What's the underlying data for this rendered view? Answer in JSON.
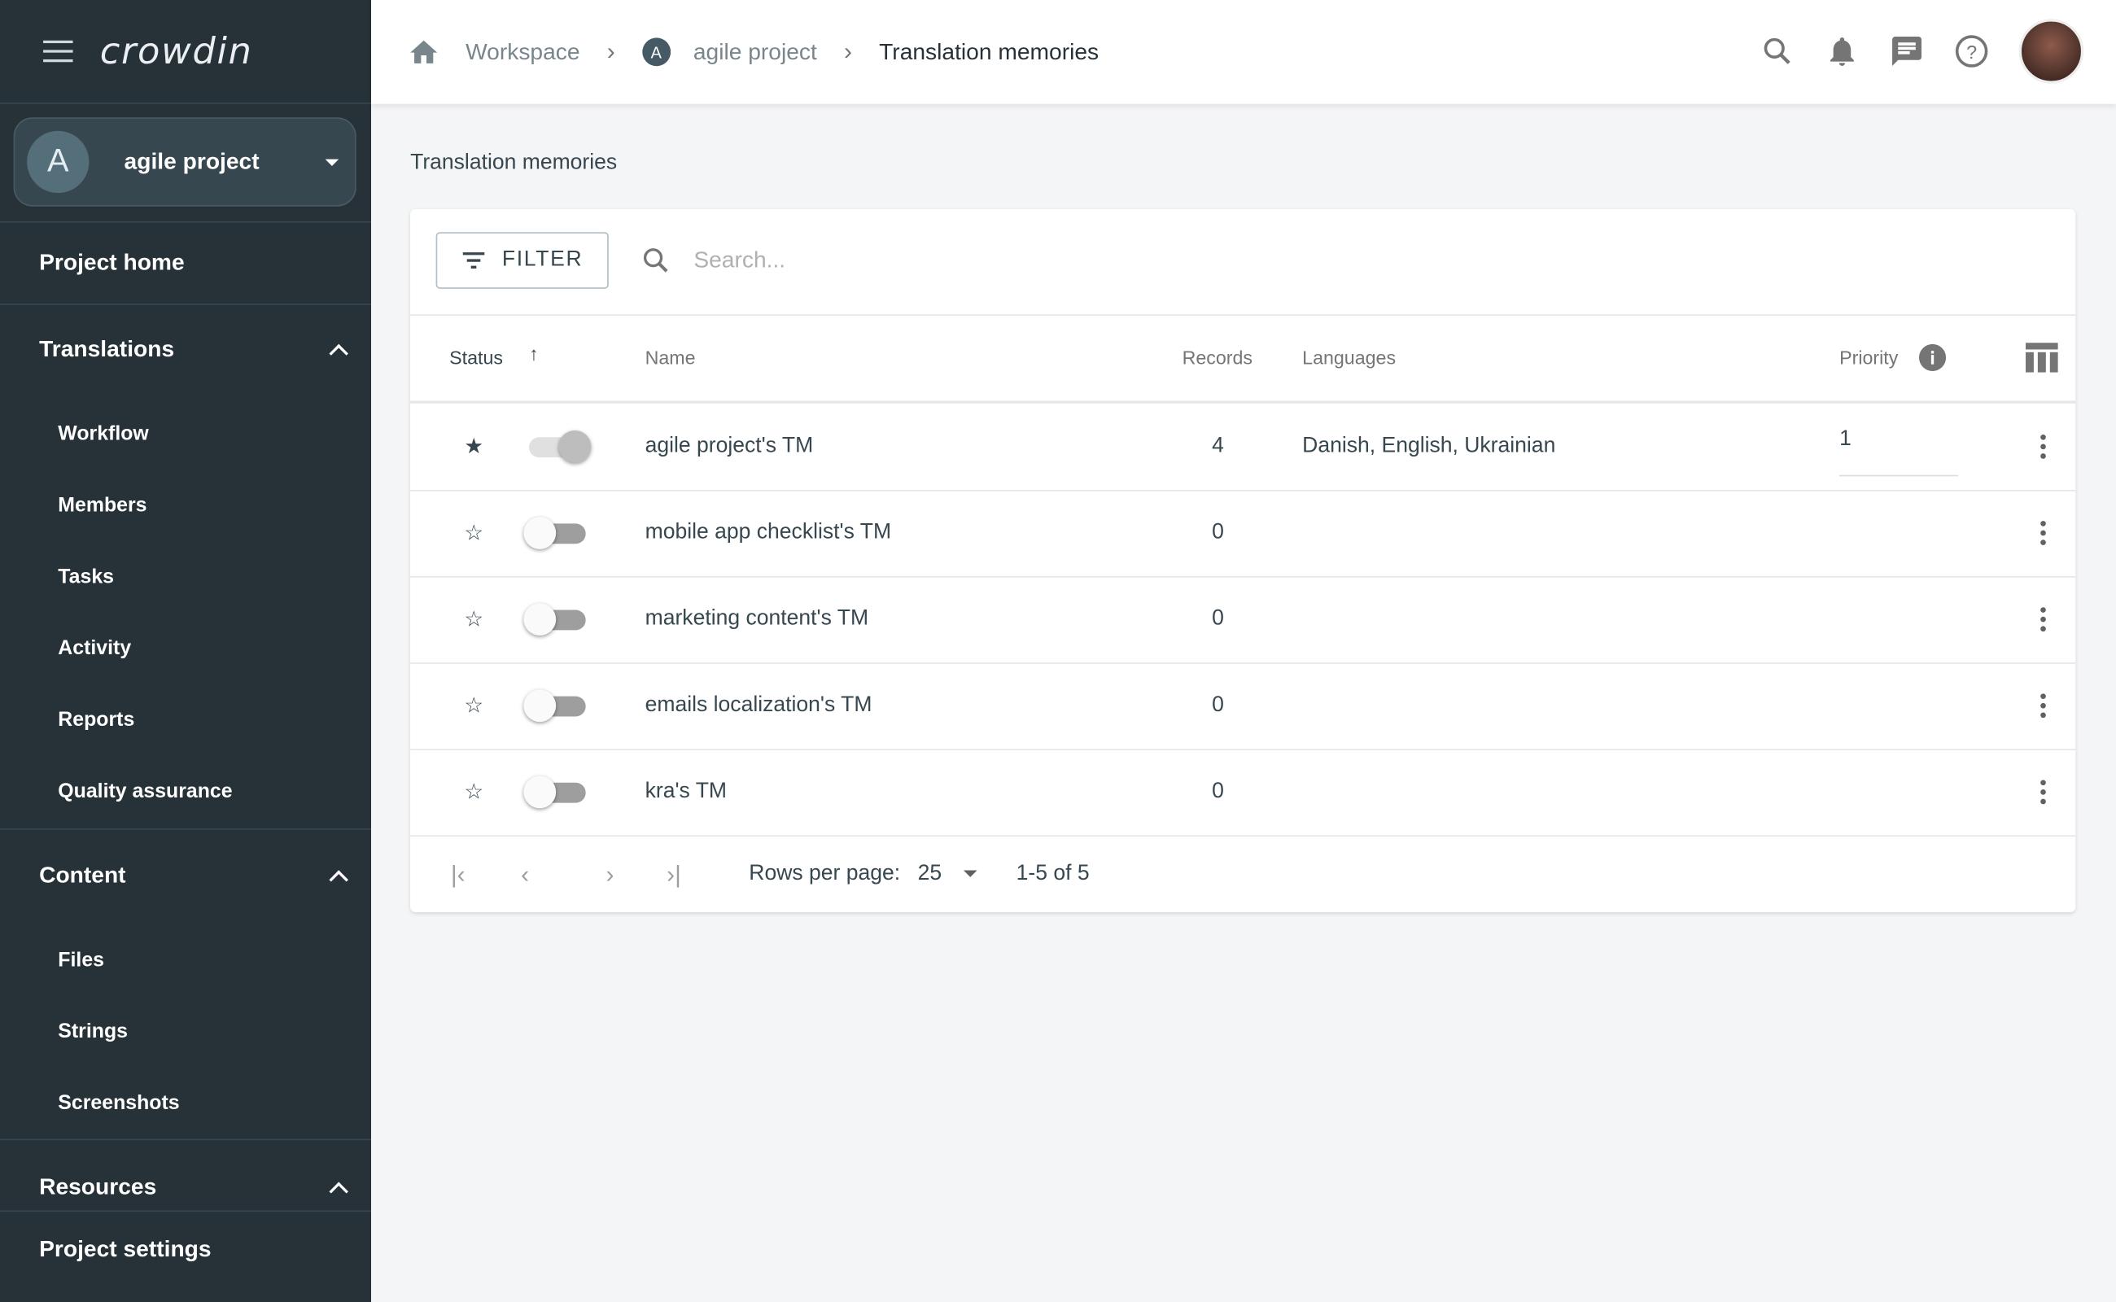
{
  "app": {
    "logo": "crowdin"
  },
  "sidebar": {
    "project": {
      "initial": "A",
      "name": "agile project"
    },
    "project_home": "Project home",
    "translations": {
      "label": "Translations",
      "items": [
        "Workflow",
        "Members",
        "Tasks",
        "Activity",
        "Reports",
        "Quality assurance"
      ]
    },
    "content": {
      "label": "Content",
      "items": [
        "Files",
        "Strings",
        "Screenshots"
      ]
    },
    "resources": "Resources",
    "project_settings": "Project settings"
  },
  "breadcrumb": {
    "workspace": "Workspace",
    "project_initial": "A",
    "project": "agile project",
    "current": "Translation memories"
  },
  "page": {
    "title": "Translation memories"
  },
  "toolbar": {
    "filter_label": "FILTER",
    "search_placeholder": "Search..."
  },
  "table": {
    "headers": {
      "status": "Status",
      "name": "Name",
      "records": "Records",
      "languages": "Languages",
      "priority": "Priority"
    },
    "sort": "Status ascending",
    "rows": [
      {
        "starred": true,
        "enabled": true,
        "name": "agile project's TM",
        "records": "4",
        "languages": "Danish, English, Ukrainian",
        "priority": "1"
      },
      {
        "starred": false,
        "enabled": false,
        "name": "mobile app checklist's TM",
        "records": "0",
        "languages": "",
        "priority": ""
      },
      {
        "starred": false,
        "enabled": false,
        "name": "marketing content's TM",
        "records": "0",
        "languages": "",
        "priority": ""
      },
      {
        "starred": false,
        "enabled": false,
        "name": "emails localization's TM",
        "records": "0",
        "languages": "",
        "priority": ""
      },
      {
        "starred": false,
        "enabled": false,
        "name": "kra's TM",
        "records": "0",
        "languages": "",
        "priority": ""
      }
    ]
  },
  "pagination": {
    "rows_per_page_label": "Rows per page:",
    "rows_per_page": "25",
    "range": "1-5 of 5"
  }
}
